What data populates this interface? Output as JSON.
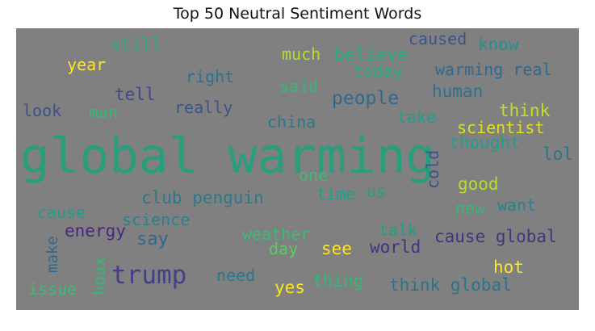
{
  "chart_data": {
    "type": "wordcloud",
    "title": "Top 50 Neutral Sentiment Words",
    "background": "#808080",
    "words": [
      {
        "text": "global warming",
        "color": "#2a9d7c"
      },
      {
        "text": "trump",
        "color": "#433e85"
      },
      {
        "text": "people",
        "color": "#31688e"
      },
      {
        "text": "believe",
        "color": "#29af7f"
      },
      {
        "text": "world",
        "color": "#46327e"
      },
      {
        "text": "caused",
        "color": "#3b528b"
      },
      {
        "text": "know",
        "color": "#21918c"
      },
      {
        "text": "still",
        "color": "#2ab07f"
      },
      {
        "text": "much",
        "color": "#b5de2b"
      },
      {
        "text": "today",
        "color": "#26ad81"
      },
      {
        "text": "warming real",
        "color": "#31688e"
      },
      {
        "text": "year",
        "color": "#fde725"
      },
      {
        "text": "right",
        "color": "#2c728e"
      },
      {
        "text": "said",
        "color": "#35b779"
      },
      {
        "text": "human",
        "color": "#2c728e"
      },
      {
        "text": "tell",
        "color": "#3e4989"
      },
      {
        "text": "really",
        "color": "#3b528b"
      },
      {
        "text": "think",
        "color": "#c2df23"
      },
      {
        "text": "look",
        "color": "#3b528b"
      },
      {
        "text": "man",
        "color": "#35b779"
      },
      {
        "text": "take",
        "color": "#1f9e89"
      },
      {
        "text": "china",
        "color": "#2a788e"
      },
      {
        "text": "scientist",
        "color": "#dde318"
      },
      {
        "text": "thought",
        "color": "#1f9e89"
      },
      {
        "text": "lol",
        "color": "#2c728e"
      },
      {
        "text": "cold",
        "color": "#3b528b"
      },
      {
        "text": "one",
        "color": "#3cbb75"
      },
      {
        "text": "time",
        "color": "#1f9e89"
      },
      {
        "text": "us",
        "color": "#1f9e89"
      },
      {
        "text": "good",
        "color": "#b5de2b"
      },
      {
        "text": "club penguin",
        "color": "#2a788e"
      },
      {
        "text": "new",
        "color": "#35b779"
      },
      {
        "text": "want",
        "color": "#26828e"
      },
      {
        "text": "cause",
        "color": "#1f9e89"
      },
      {
        "text": "science",
        "color": "#26828e"
      },
      {
        "text": "energy",
        "color": "#482878"
      },
      {
        "text": "say",
        "color": "#31688e"
      },
      {
        "text": "weather",
        "color": "#3cbb75"
      },
      {
        "text": "talk",
        "color": "#1f9e89"
      },
      {
        "text": "day",
        "color": "#5ec962"
      },
      {
        "text": "see",
        "color": "#fde725"
      },
      {
        "text": "cause global",
        "color": "#46327e"
      },
      {
        "text": "make",
        "color": "#31688e"
      },
      {
        "text": "hoax",
        "color": "#35b779"
      },
      {
        "text": "need",
        "color": "#2a788e"
      },
      {
        "text": "hot",
        "color": "#fde725"
      },
      {
        "text": "issue",
        "color": "#3cbb75"
      },
      {
        "text": "yes",
        "color": "#fde725"
      },
      {
        "text": "thing",
        "color": "#35b779"
      },
      {
        "text": "think global",
        "color": "#2c728e"
      }
    ]
  }
}
